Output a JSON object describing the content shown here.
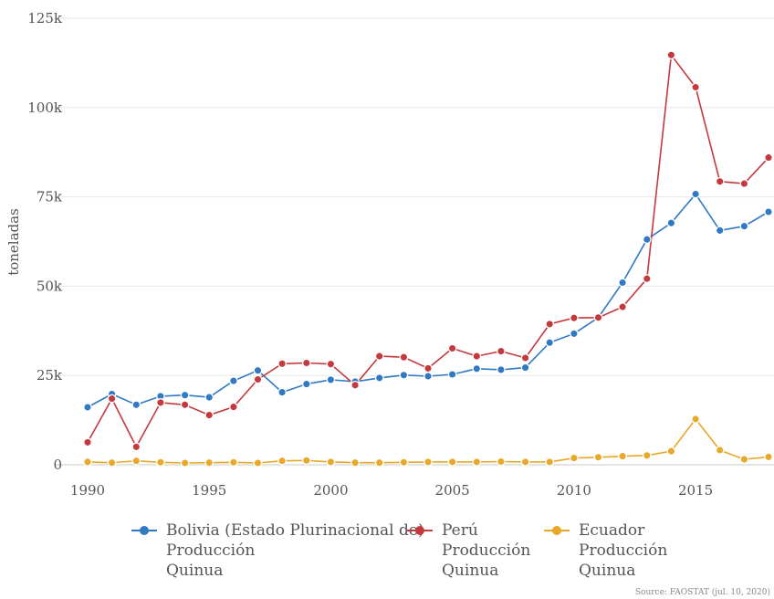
{
  "chart_data": {
    "type": "line",
    "xlabel": "",
    "ylabel": "toneladas",
    "ylim": [
      0,
      125000
    ],
    "xlim": [
      1990,
      2018
    ],
    "y_ticks": [
      {
        "value": 0,
        "label": "0"
      },
      {
        "value": 25000,
        "label": "25k"
      },
      {
        "value": 50000,
        "label": "50k"
      },
      {
        "value": 75000,
        "label": "75k"
      },
      {
        "value": 100000,
        "label": "100k"
      },
      {
        "value": 125000,
        "label": "125k"
      }
    ],
    "x_ticks": [
      {
        "value": 1990,
        "label": "1990"
      },
      {
        "value": 1995,
        "label": "1995"
      },
      {
        "value": 2000,
        "label": "2000"
      },
      {
        "value": 2005,
        "label": "2005"
      },
      {
        "value": 2010,
        "label": "2010"
      },
      {
        "value": 2015,
        "label": "2015"
      }
    ],
    "grid": true,
    "legend_position": "bottom",
    "x": [
      1990,
      1991,
      1992,
      1993,
      1994,
      1995,
      1996,
      1997,
      1998,
      1999,
      2000,
      2001,
      2002,
      2003,
      2004,
      2005,
      2006,
      2007,
      2008,
      2009,
      2010,
      2011,
      2012,
      2013,
      2014,
      2015,
      2016,
      2017,
      2018
    ],
    "series": [
      {
        "name": "Bolivia (Estado Plurinacional de)\nProducción\nQuinua",
        "color": "#3179c4",
        "values": [
          16100,
          19800,
          16800,
          19200,
          19500,
          18900,
          23500,
          26400,
          20300,
          22600,
          23800,
          23300,
          24300,
          25100,
          24800,
          25300,
          26900,
          26600,
          27200,
          34200,
          36700,
          41200,
          51000,
          63100,
          67700,
          75800,
          65600,
          66800,
          70800
        ]
      },
      {
        "name": "Perú\nProducción\nQuinua",
        "color": "#c4393d",
        "values": [
          6300,
          18500,
          5000,
          17400,
          16800,
          13900,
          16200,
          23900,
          28300,
          28500,
          28200,
          22300,
          30400,
          30100,
          27000,
          32600,
          30400,
          31800,
          29900,
          39400,
          41100,
          41200,
          44200,
          52100,
          114700,
          105700,
          79300,
          78700,
          86000
        ]
      },
      {
        "name": "Ecuador\nProducción\nQuinua",
        "color": "#e8a92a",
        "values": [
          800,
          600,
          1100,
          700,
          500,
          600,
          700,
          500,
          1100,
          1200,
          800,
          600,
          600,
          700,
          800,
          800,
          800,
          900,
          800,
          800,
          1900,
          2100,
          2400,
          2600,
          3800,
          12800,
          4100,
          1500,
          2200
        ]
      }
    ]
  },
  "source": "Source: FAOSTAT (jul. 10, 2020)"
}
